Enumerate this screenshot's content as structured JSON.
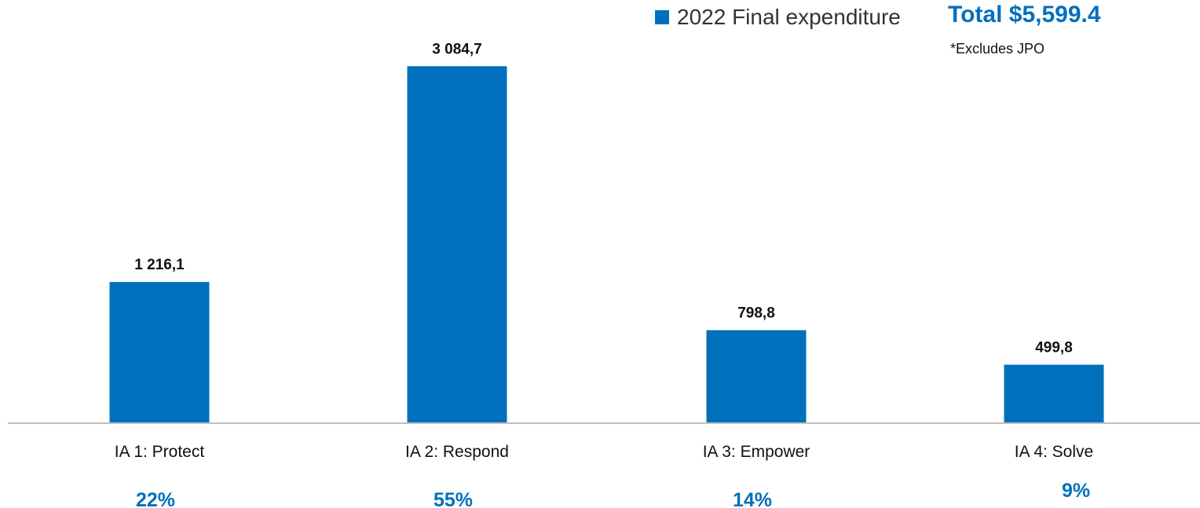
{
  "colors": {
    "bar": "#0070BC",
    "accent": "#0070BC",
    "axis": "#BFBFBF",
    "text": "#111111"
  },
  "legend": {
    "label": "2022 Final expenditure",
    "swatch_icon": "square-icon"
  },
  "total_label": "Total $5,599.4",
  "note": "*Excludes JPO",
  "chart_data": {
    "type": "bar",
    "title": "",
    "xlabel": "",
    "ylabel": "",
    "ylim": [
      0,
      3250
    ],
    "grid": false,
    "legend_position": "top-right",
    "categories": [
      "IA 1: Protect",
      "IA 2: Respond",
      "IA 3: Empower",
      "IA 4: Solve"
    ],
    "series": [
      {
        "name": "2022 Final expenditure",
        "values": [
          1216.1,
          3084.7,
          798.8,
          499.8
        ],
        "value_labels": [
          "1 216,1",
          "3 084,7",
          "798,8",
          "499,8"
        ]
      }
    ],
    "shares": [
      "22%",
      "55%",
      "14%",
      "9%"
    ]
  }
}
